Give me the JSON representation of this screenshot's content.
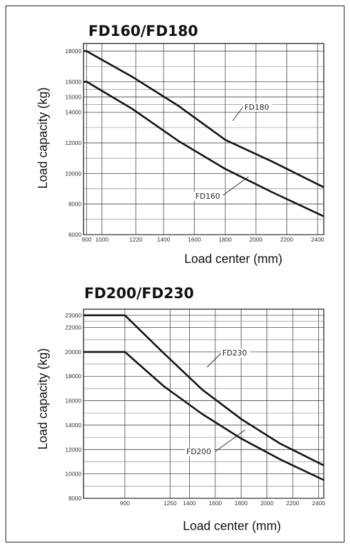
{
  "chart_data": [
    {
      "type": "line",
      "title": "FD160/FD180",
      "xlabel": "Load center (mm)",
      "ylabel": "Load capacity (kg)",
      "x_ticks": [
        "900",
        "1000",
        "1220",
        "1400",
        "1600",
        "1800",
        "2000",
        "2200",
        "2400"
      ],
      "y_ticks": [
        "6000",
        "8000",
        "10000",
        "12000",
        "14000",
        "15000",
        "16000",
        "18000"
      ],
      "xlim": [
        880,
        2440
      ],
      "ylim": [
        6000,
        18500
      ],
      "grid": true,
      "series": [
        {
          "name": "FD180",
          "x": [
            880,
            900,
            1200,
            1500,
            1800,
            2100,
            2440
          ],
          "y": [
            18000,
            18000,
            16300,
            14400,
            12200,
            10800,
            9100
          ]
        },
        {
          "name": "FD160",
          "x": [
            880,
            900,
            1200,
            1500,
            1800,
            2100,
            2440
          ],
          "y": [
            16000,
            16000,
            14200,
            12100,
            10300,
            8800,
            7200
          ]
        }
      ],
      "annotations": [
        {
          "text": "FD180",
          "series": "FD180"
        },
        {
          "text": "FD160",
          "series": "FD160"
        }
      ]
    },
    {
      "type": "line",
      "title": "FD200/FD230",
      "xlabel": "Load center (mm)",
      "ylabel": "Load capacity (kg)",
      "x_ticks": [
        "900",
        "1250",
        "1400",
        "1600",
        "1800",
        "2000",
        "2200",
        "2400"
      ],
      "y_ticks": [
        "8000",
        "10000",
        "12000",
        "14000",
        "16000",
        "18000",
        "20000",
        "22000",
        "23000"
      ],
      "xlim": [
        580,
        2440
      ],
      "ylim": [
        8000,
        23500
      ],
      "grid": true,
      "series": [
        {
          "name": "FD230",
          "x": [
            580,
            900,
            1200,
            1500,
            1800,
            2100,
            2440
          ],
          "y": [
            23000,
            23000,
            19900,
            16900,
            14500,
            12500,
            10700
          ]
        },
        {
          "name": "FD200",
          "x": [
            580,
            900,
            1200,
            1500,
            1800,
            2100,
            2440
          ],
          "y": [
            20000,
            20000,
            17200,
            14900,
            12900,
            11200,
            9500
          ]
        }
      ],
      "annotations": [
        {
          "text": "FD230",
          "series": "FD230"
        },
        {
          "text": "FD200",
          "series": "FD200"
        }
      ]
    }
  ]
}
